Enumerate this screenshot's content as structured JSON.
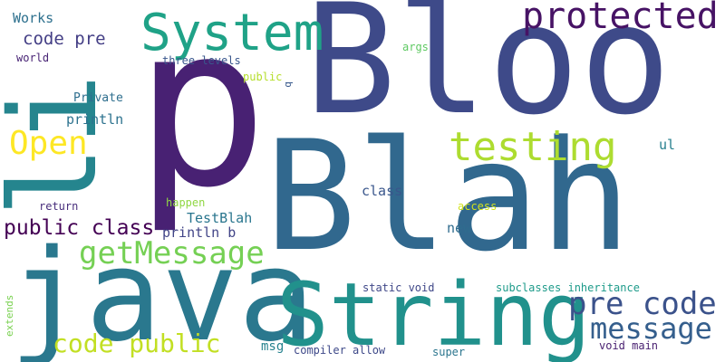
{
  "words": [
    {
      "id": "w-blah",
      "text": "Blah",
      "color": "#31688e"
    },
    {
      "id": "w-bloo",
      "text": "Bloo",
      "color": "#3e4a89"
    },
    {
      "id": "w-p",
      "text": "p",
      "color": "#482173"
    },
    {
      "id": "w-java",
      "text": "java",
      "color": "#2a788e"
    },
    {
      "id": "w-string",
      "text": "String",
      "color": "#21918c"
    },
    {
      "id": "w-li",
      "text": "li",
      "color": "#25858e"
    },
    {
      "id": "w-system",
      "text": "System",
      "color": "#1fa287"
    },
    {
      "id": "w-protected",
      "text": "protected",
      "color": "#471365"
    },
    {
      "id": "w-testing",
      "text": "testing",
      "color": "#addc30"
    },
    {
      "id": "w-pre-code",
      "text": "pre code",
      "color": "#3b528b"
    },
    {
      "id": "w-message",
      "text": "message",
      "color": "#355f8d"
    },
    {
      "id": "w-getmessage",
      "text": "getMessage",
      "color": "#75d054"
    },
    {
      "id": "w-open",
      "text": "Open",
      "color": "#fde725"
    },
    {
      "id": "w-code-public",
      "text": "code public",
      "color": "#c2df23"
    },
    {
      "id": "w-public-class",
      "text": "public class",
      "color": "#440154"
    },
    {
      "id": "w-code-pre",
      "text": "code pre",
      "color": "#433e85"
    },
    {
      "id": "w-works",
      "text": "Works",
      "color": "#2d708e"
    },
    {
      "id": "w-world",
      "text": "world",
      "color": "#482475"
    },
    {
      "id": "w-println-1",
      "text": "println",
      "color": "#2c728e"
    },
    {
      "id": "w-private",
      "text": "Private",
      "color": "#2e6e8e"
    },
    {
      "id": "w-three-levels",
      "text": "three levels",
      "color": "#39568c"
    },
    {
      "id": "w-public-small",
      "text": "public",
      "color": "#b5de2b"
    },
    {
      "id": "w-b",
      "text": "b",
      "color": "#38598c"
    },
    {
      "id": "w-args",
      "text": "args",
      "color": "#5ec962"
    },
    {
      "id": "w-class",
      "text": "class",
      "color": "#39568c"
    },
    {
      "id": "w-return",
      "text": "return",
      "color": "#472d7b"
    },
    {
      "id": "w-happen",
      "text": "happen",
      "color": "#90d743"
    },
    {
      "id": "w-testblah",
      "text": "TestBlah",
      "color": "#2a768e"
    },
    {
      "id": "w-println-b",
      "text": "println b",
      "color": "#414487"
    },
    {
      "id": "w-access",
      "text": "access",
      "color": "#d2e21b"
    },
    {
      "id": "w-new",
      "text": "new",
      "color": "#2f6c8e"
    },
    {
      "id": "w-ul",
      "text": "ul",
      "color": "#277f8e"
    },
    {
      "id": "w-extends",
      "text": "extends",
      "color": "#7ad151"
    },
    {
      "id": "w-static-void",
      "text": "static void",
      "color": "#3f4788"
    },
    {
      "id": "w-subclasses",
      "text": "subclasses inheritance",
      "color": "#1e9b8a"
    },
    {
      "id": "w-msg",
      "text": "msg",
      "color": "#26828e"
    },
    {
      "id": "w-compiler-allow",
      "text": "compiler allow",
      "color": "#3e4989"
    },
    {
      "id": "w-super",
      "text": "super",
      "color": "#2b758e"
    },
    {
      "id": "w-void-main",
      "text": "void main",
      "color": "#481f70"
    }
  ]
}
